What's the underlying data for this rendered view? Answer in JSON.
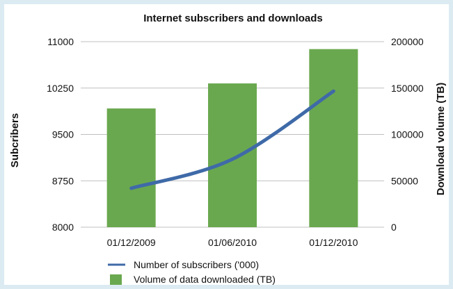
{
  "chart_data": {
    "type": "bar+line",
    "title": "Internet subscribers and downloads",
    "categories": [
      "01/12/2009",
      "01/06/2010",
      "01/12/2010"
    ],
    "y_left": {
      "label": "Subcribers",
      "ticks": [
        "11000",
        "10250",
        "9500",
        "8750",
        "8000"
      ],
      "range": [
        8000,
        11000
      ]
    },
    "y_right": {
      "label": "Download volume (TB)",
      "ticks": [
        "200000",
        "150000",
        "100000",
        "50000",
        "0"
      ],
      "range": [
        0,
        200000
      ]
    },
    "series": [
      {
        "name": "Number of subscribers ('000)",
        "kind": "line",
        "axis": "left",
        "color": "#3f6aa8",
        "values": [
          8630,
          9100,
          10200
        ],
        "x_positions": [
          0,
          1,
          2
        ]
      },
      {
        "name": "Volume of data downloaded (TB)",
        "kind": "bar",
        "axis": "right",
        "color": "#6aa84f",
        "values": [
          128000,
          155000,
          192000
        ]
      }
    ],
    "legend_position": "bottom",
    "grid": true
  }
}
